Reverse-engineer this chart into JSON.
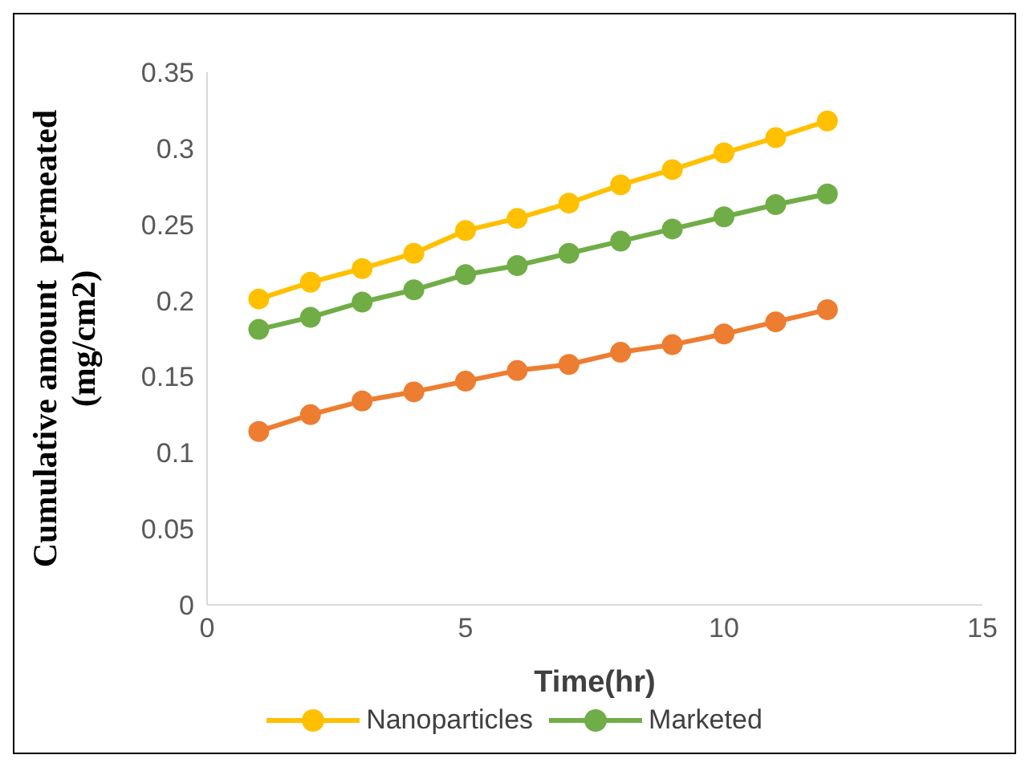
{
  "chart_data": {
    "type": "line",
    "xlabel": "Time(hr)",
    "ylabel": "Cumulative amount  permeated (mg/cm2)",
    "x": [
      1,
      2,
      3,
      4,
      5,
      6,
      7,
      8,
      9,
      10,
      11,
      12
    ],
    "series": [
      {
        "color": "#ed7d31",
        "values": [
          0.114,
          0.125,
          0.134,
          0.14,
          0.147,
          0.154,
          0.158,
          0.166,
          0.171,
          0.178,
          0.186,
          0.194
        ]
      },
      {
        "name": "Nanoparticles",
        "color": "#ffc000",
        "values": [
          0.201,
          0.212,
          0.221,
          0.231,
          0.246,
          0.254,
          0.264,
          0.276,
          0.286,
          0.297,
          0.307,
          0.318
        ]
      },
      {
        "name": "Marketed",
        "color": "#70ad47",
        "values": [
          0.181,
          0.189,
          0.199,
          0.207,
          0.217,
          0.223,
          0.231,
          0.239,
          0.247,
          0.255,
          0.263,
          0.27
        ]
      }
    ],
    "xlim": [
      0,
      15
    ],
    "xticks": [
      0,
      5,
      10,
      15
    ],
    "ylim": [
      0,
      0.35
    ],
    "yticks": [
      0,
      0.05,
      0.1,
      0.15,
      0.2,
      0.25,
      0.3,
      0.35
    ],
    "grid": false,
    "legend": "bottom",
    "marker": "circle",
    "line_style": "solid"
  }
}
